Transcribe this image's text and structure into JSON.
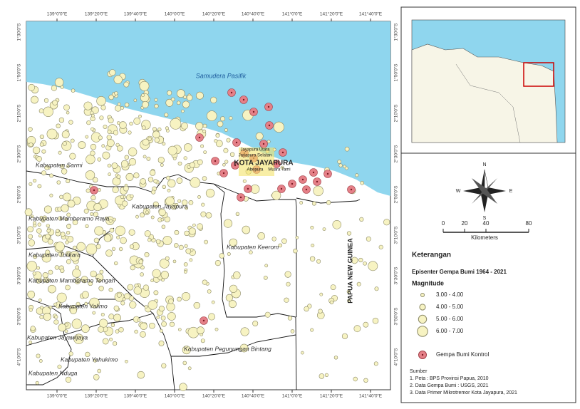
{
  "map": {
    "lon_labels": [
      "139°0'0\"E",
      "139°20'0\"E",
      "139°40'0\"E",
      "140°0'0\"E",
      "140°20'0\"E",
      "140°40'0\"E",
      "141°0'0\"E",
      "141°20'0\"E",
      "141°40'0\"E"
    ],
    "lat_labels": [
      "1°30'0\"S",
      "1°50'0\"S",
      "2°10'0\"S",
      "2°30'0\"S",
      "2°50'0\"S",
      "3°10'0\"S",
      "3°30'0\"S",
      "3°50'0\"S",
      "4°10'0\"S"
    ],
    "ocean": "Samudera Pasifik",
    "city": "KOTA JAYAPURA",
    "country": "PAPUA NEW GUINEA",
    "districts": [
      "Jayapura Utara",
      "Jayapura Selatan",
      "Abepura",
      "Muara Tami"
    ],
    "regencies": [
      "Kabupaten Sarmi",
      "Kabupaten Jayapura",
      "Kabupaten Mamberamo Raya",
      "Kabupaten Tolikara",
      "Kabupaten Mamberamo Tengah",
      "Kabupaten Yalimo",
      "Kabupaten Jayawijaya",
      "Kabupaten Yahukimo",
      "Kabupaten Nduga",
      "Kabupaten Keerom",
      "Kabupaten Pegunungan Bintang"
    ]
  },
  "compass": {
    "n": "N",
    "s": "S",
    "e": "E",
    "w": "W"
  },
  "scale": {
    "ticks": [
      0,
      20,
      40,
      80
    ],
    "unit": "Kilometers"
  },
  "legend": {
    "title": "Keterangan",
    "subtitle": "Episenter Gempa Bumi 1964 - 2021",
    "magnitude_title": "Magnitude",
    "classes": [
      "3.00 - 4.00",
      "4.00 - 5.00",
      "5.00 - 6.00",
      "6.00 - 7.00"
    ],
    "control": "Gempa Bumi Kontrol"
  },
  "source": {
    "title": "Sumber",
    "items": [
      "1. Peta : BPS Provinsi Papua, 2010",
      "2. Data Gempa Bumi : USGS, 2021",
      "3. Data Primer Mikrotremor Kota Jayapura, 2021"
    ]
  }
}
